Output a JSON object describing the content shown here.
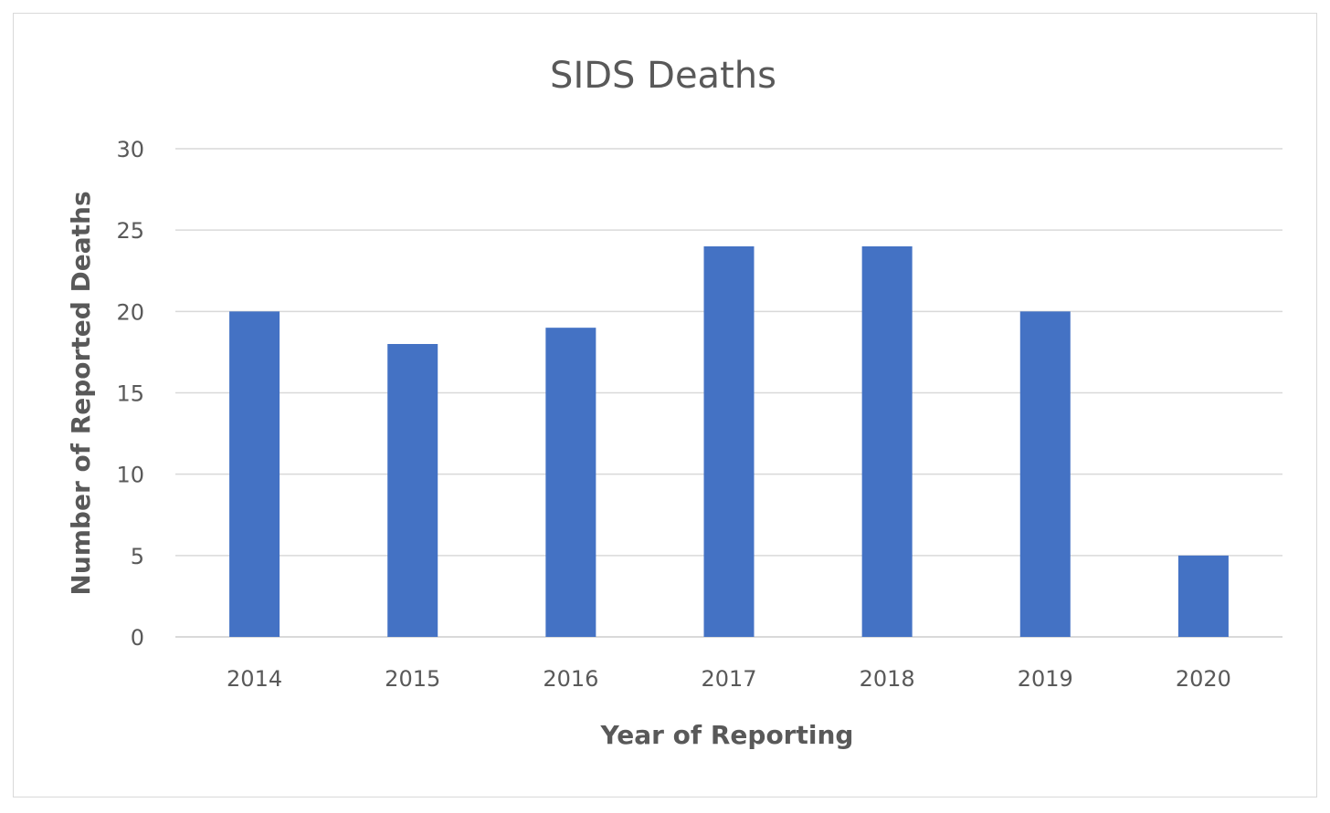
{
  "chart_data": {
    "type": "bar",
    "title": "SIDS Deaths",
    "xlabel": "Year of Reporting",
    "ylabel": "Number of Reported Deaths",
    "categories": [
      "2014",
      "2015",
      "2016",
      "2017",
      "2018",
      "2019",
      "2020"
    ],
    "values": [
      20,
      18,
      19,
      24,
      24,
      20,
      5
    ],
    "ylim": [
      0,
      30
    ],
    "yticks": [
      0,
      5,
      10,
      15,
      20,
      25,
      30
    ],
    "grid": true,
    "legend": "none",
    "bar_color": "#4472c4"
  }
}
